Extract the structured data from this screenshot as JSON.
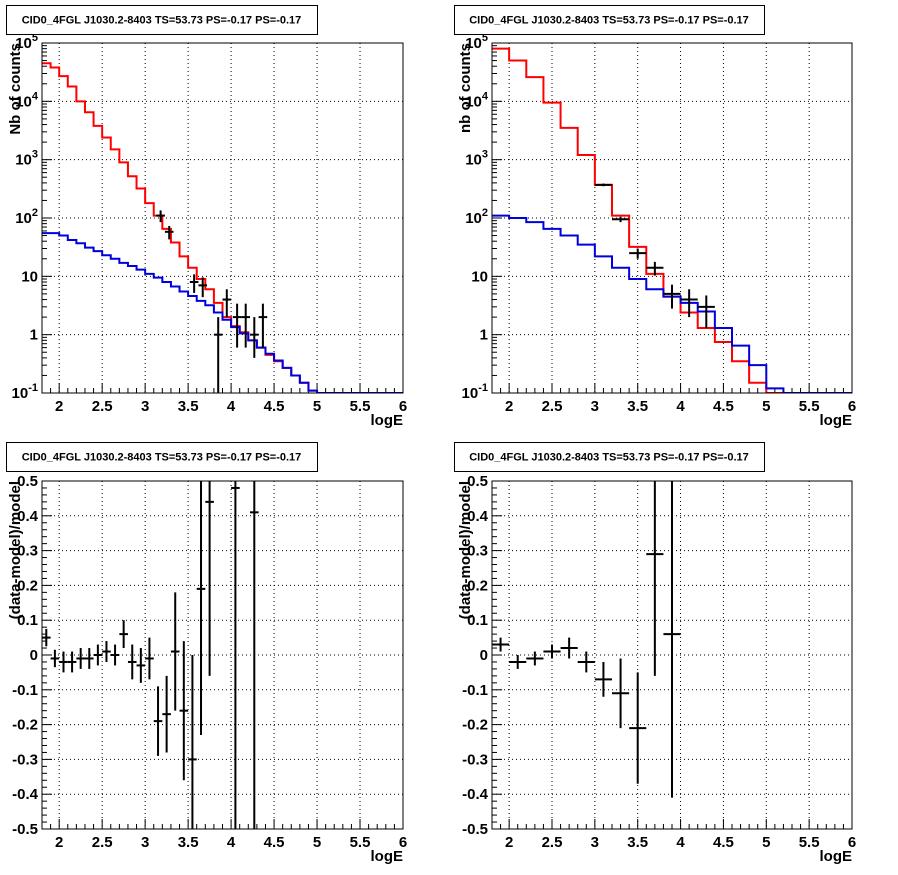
{
  "chart_data": [
    {
      "type": "line",
      "title": "CID0_4FGL J1030.2-8403 TS=53.73 PS=-0.17 PS=-0.17",
      "xlabel": "logE",
      "ylabel": "Nb of counts",
      "xlim": [
        1.8,
        6.0
      ],
      "ylim": [
        0.1,
        100000
      ],
      "yscale": "log",
      "grid": true,
      "xticks": [
        "2",
        "2.5",
        "3",
        "3.5",
        "4",
        "4.5",
        "5",
        "5.5",
        "6"
      ],
      "yticks": [
        "10^-1",
        "1",
        "10",
        "10^2",
        "10^3",
        "10^4",
        "10^5"
      ],
      "series": [
        {
          "style": "step",
          "color": "#ff0000",
          "edges": [
            1.8,
            1.9,
            2.0,
            2.1,
            2.2,
            2.3,
            2.4,
            2.5,
            2.6,
            2.7,
            2.8,
            2.9,
            3.0,
            3.1,
            3.2,
            3.3,
            3.4,
            3.5,
            3.6,
            3.7,
            3.8,
            3.9,
            4.0,
            4.1,
            4.2,
            4.3,
            4.4,
            4.5,
            4.6,
            4.7,
            4.8,
            4.9,
            5.0,
            5.1,
            5.2,
            5.3,
            5.4,
            5.5,
            5.6,
            5.7,
            5.8,
            5.9,
            6.0
          ],
          "values": [
            45000,
            38000,
            27000,
            18000,
            10000,
            6500,
            3800,
            2400,
            1500,
            900,
            520,
            320,
            180,
            110,
            65,
            38,
            22,
            14,
            9,
            6,
            3.5,
            2.0,
            1.4,
            1.1,
            0.8,
            0.6,
            0.45,
            0.35,
            0.27,
            0.2,
            0.15,
            0.11,
            0.1,
            0.1,
            0.1,
            0.1,
            0.1,
            0.1,
            0.1,
            0.1,
            0.1,
            0.1
          ]
        },
        {
          "style": "step",
          "color": "#0000dd",
          "edges": [
            1.8,
            1.9,
            2.0,
            2.1,
            2.2,
            2.3,
            2.4,
            2.5,
            2.6,
            2.7,
            2.8,
            2.9,
            3.0,
            3.1,
            3.2,
            3.3,
            3.4,
            3.5,
            3.6,
            3.7,
            3.8,
            3.9,
            4.0,
            4.1,
            4.2,
            4.3,
            4.4,
            4.5,
            4.6,
            4.7,
            4.8,
            4.9,
            5.0,
            5.1,
            5.2,
            5.3,
            5.4,
            5.5,
            5.6,
            5.7,
            5.8,
            5.9,
            6.0
          ],
          "values": [
            55,
            55,
            50,
            42,
            37,
            31,
            27,
            23,
            20,
            17,
            15,
            13,
            11,
            9.5,
            8,
            6.7,
            5.5,
            4.6,
            3.8,
            3.2,
            2.4,
            1.8,
            1.35,
            1.05,
            0.8,
            0.6,
            0.47,
            0.36,
            0.27,
            0.2,
            0.15,
            0.11,
            0.1,
            0.1,
            0.1,
            0.1,
            0.1,
            0.1,
            0.1,
            0.1,
            0.1,
            0.1
          ]
        },
        {
          "style": "errorbar",
          "color": "#000000",
          "points": [
            {
              "x": 3.18,
              "y": 110,
              "xerr": 0.05,
              "yerr_lo": 25,
              "yerr_hi": 25
            },
            {
              "x": 3.28,
              "y": 58,
              "xerr": 0.05,
              "yerr_lo": 15,
              "yerr_hi": 15
            },
            {
              "x": 3.57,
              "y": 8,
              "xerr": 0.05,
              "yerr_lo": 2.8,
              "yerr_hi": 2.8
            },
            {
              "x": 3.67,
              "y": 7,
              "xerr": 0.05,
              "yerr_lo": 2.6,
              "yerr_hi": 2.6
            },
            {
              "x": 3.85,
              "y": 1,
              "xerr": 0.05,
              "yerr_lo": 0.9,
              "yerr_hi": 1.0
            },
            {
              "x": 3.95,
              "y": 4,
              "xerr": 0.05,
              "yerr_lo": 2.0,
              "yerr_hi": 2.0
            },
            {
              "x": 4.07,
              "y": 2,
              "xerr": 0.05,
              "yerr_lo": 1.4,
              "yerr_hi": 1.4
            },
            {
              "x": 4.17,
              "y": 2,
              "xerr": 0.05,
              "yerr_lo": 1.4,
              "yerr_hi": 1.4
            },
            {
              "x": 4.27,
              "y": 1,
              "xerr": 0.05,
              "yerr_lo": 0.6,
              "yerr_hi": 1.0
            },
            {
              "x": 4.37,
              "y": 2,
              "xerr": 0.05,
              "yerr_lo": 1.4,
              "yerr_hi": 1.4
            }
          ]
        }
      ]
    },
    {
      "type": "line",
      "title": "CID0_4FGL J1030.2-8403 TS=53.73 PS=-0.17 PS=-0.17",
      "xlabel": "logE",
      "ylabel": "nb of counts",
      "xlim": [
        1.8,
        6.0
      ],
      "ylim": [
        0.1,
        100000
      ],
      "yscale": "log",
      "grid": true,
      "xticks": [
        "2",
        "2.5",
        "3",
        "3.5",
        "4",
        "4.5",
        "5",
        "5.5",
        "6"
      ],
      "yticks": [
        "10^-1",
        "1",
        "10",
        "10^2",
        "10^3",
        "10^4",
        "10^5"
      ],
      "series": [
        {
          "style": "step",
          "color": "#ff0000",
          "edges": [
            1.8,
            2.0,
            2.2,
            2.4,
            2.6,
            2.8,
            3.0,
            3.2,
            3.4,
            3.6,
            3.8,
            4.0,
            4.2,
            4.4,
            4.6,
            4.8,
            5.0,
            5.2,
            5.4,
            5.6,
            5.8,
            6.0
          ],
          "values": [
            80000,
            50000,
            26000,
            9500,
            3500,
            1200,
            370,
            110,
            32,
            11,
            4.5,
            2.4,
            1.3,
            0.75,
            0.35,
            0.15,
            0.1,
            0.1,
            0.1,
            0.1,
            0.1
          ]
        },
        {
          "style": "step",
          "color": "#0000dd",
          "edges": [
            1.8,
            2.0,
            2.2,
            2.4,
            2.6,
            2.8,
            3.0,
            3.2,
            3.4,
            3.6,
            3.8,
            4.0,
            4.2,
            4.4,
            4.6,
            4.8,
            5.0,
            5.2,
            5.4,
            5.6,
            5.8,
            6.0
          ],
          "values": [
            110,
            100,
            85,
            65,
            50,
            35,
            22,
            14,
            9,
            6,
            4.5,
            3.5,
            2.5,
            1.3,
            0.65,
            0.3,
            0.12,
            0.1,
            0.1,
            0.1,
            0.1
          ]
        },
        {
          "style": "errorbar",
          "color": "#000000",
          "points": [
            {
              "x": 3.1,
              "y": 370,
              "xerr": 0.1,
              "yerr_lo": 20,
              "yerr_hi": 20
            },
            {
              "x": 3.3,
              "y": 95,
              "xerr": 0.1,
              "yerr_lo": 10,
              "yerr_hi": 10
            },
            {
              "x": 3.5,
              "y": 25,
              "xerr": 0.1,
              "yerr_lo": 5,
              "yerr_hi": 5
            },
            {
              "x": 3.7,
              "y": 14,
              "xerr": 0.1,
              "yerr_lo": 3.7,
              "yerr_hi": 3.7
            },
            {
              "x": 3.9,
              "y": 5,
              "xerr": 0.1,
              "yerr_lo": 2.2,
              "yerr_hi": 2.2
            },
            {
              "x": 4.1,
              "y": 4,
              "xerr": 0.1,
              "yerr_lo": 2,
              "yerr_hi": 2
            },
            {
              "x": 4.3,
              "y": 3,
              "xerr": 0.1,
              "yerr_lo": 1.7,
              "yerr_hi": 1.7
            }
          ]
        }
      ]
    },
    {
      "type": "scatter",
      "title": "CID0_4FGL J1030.2-8403 TS=53.73 PS=-0.17 PS=-0.17",
      "xlabel": "logE",
      "ylabel": "(data-model)/model",
      "xlim": [
        1.8,
        6.0
      ],
      "ylim": [
        -0.5,
        0.5
      ],
      "grid": true,
      "xticks": [
        "2",
        "2.5",
        "3",
        "3.5",
        "4",
        "4.5",
        "5",
        "5.5",
        "6"
      ],
      "yticks": [
        "-0.5",
        "-0.4",
        "-0.3",
        "-0.2",
        "-0.1",
        "0",
        "0.1",
        "0.2",
        "0.3",
        "0.4",
        "0.5"
      ],
      "series": [
        {
          "style": "errorbar",
          "color": "#000000",
          "points": [
            {
              "x": 1.85,
              "y": 0.05,
              "xerr": 0.05,
              "yerr": 0.025
            },
            {
              "x": 1.95,
              "y": -0.01,
              "xerr": 0.05,
              "yerr": 0.025
            },
            {
              "x": 2.05,
              "y": -0.02,
              "xerr": 0.05,
              "yerr": 0.03
            },
            {
              "x": 2.15,
              "y": -0.02,
              "xerr": 0.05,
              "yerr": 0.03
            },
            {
              "x": 2.25,
              "y": -0.01,
              "xerr": 0.05,
              "yerr": 0.03
            },
            {
              "x": 2.35,
              "y": -0.01,
              "xerr": 0.05,
              "yerr": 0.03
            },
            {
              "x": 2.45,
              "y": 0.0,
              "xerr": 0.05,
              "yerr": 0.03
            },
            {
              "x": 2.55,
              "y": 0.01,
              "xerr": 0.05,
              "yerr": 0.03
            },
            {
              "x": 2.65,
              "y": 0.0,
              "xerr": 0.05,
              "yerr": 0.03
            },
            {
              "x": 2.75,
              "y": 0.06,
              "xerr": 0.05,
              "yerr": 0.04
            },
            {
              "x": 2.85,
              "y": -0.02,
              "xerr": 0.05,
              "yerr": 0.05
            },
            {
              "x": 2.95,
              "y": -0.03,
              "xerr": 0.05,
              "yerr": 0.05
            },
            {
              "x": 3.05,
              "y": -0.01,
              "xerr": 0.05,
              "yerr": 0.06
            },
            {
              "x": 3.15,
              "y": -0.19,
              "xerr": 0.05,
              "yerr": 0.1
            },
            {
              "x": 3.25,
              "y": -0.17,
              "xerr": 0.05,
              "yerr": 0.11
            },
            {
              "x": 3.35,
              "y": 0.01,
              "xerr": 0.05,
              "yerr": 0.17
            },
            {
              "x": 3.45,
              "y": -0.16,
              "xerr": 0.05,
              "yerr": 0.2
            },
            {
              "x": 3.55,
              "y": -0.3,
              "xerr": 0.05,
              "yerr": 0.3
            },
            {
              "x": 3.65,
              "y": 0.19,
              "xerr": 0.05,
              "yerr": 0.42
            },
            {
              "x": 3.75,
              "y": 0.44,
              "xerr": 0.05,
              "yerr": 0.5
            },
            {
              "x": 4.05,
              "y": 0.48,
              "xerr": 0.05,
              "yerr": 1.0
            },
            {
              "x": 4.27,
              "y": 0.41,
              "xerr": 0.05,
              "yerr": 1.0
            }
          ]
        }
      ]
    },
    {
      "type": "scatter",
      "title": "CID0_4FGL J1030.2-8403 TS=53.73 PS=-0.17 PS=-0.17",
      "xlabel": "logE",
      "ylabel": "(data-model)/model",
      "xlim": [
        1.8,
        6.0
      ],
      "ylim": [
        -0.5,
        0.5
      ],
      "grid": true,
      "xticks": [
        "2",
        "2.5",
        "3",
        "3.5",
        "4",
        "4.5",
        "5",
        "5.5",
        "6"
      ],
      "yticks": [
        "-0.5",
        "-0.4",
        "-0.3",
        "-0.2",
        "-0.1",
        "0",
        "0.1",
        "0.2",
        "0.3",
        "0.4",
        "0.5"
      ],
      "series": [
        {
          "style": "errorbar",
          "color": "#000000",
          "points": [
            {
              "x": 1.9,
              "y": 0.03,
              "xerr": 0.1,
              "yerr": 0.02
            },
            {
              "x": 2.1,
              "y": -0.02,
              "xerr": 0.1,
              "yerr": 0.02
            },
            {
              "x": 2.3,
              "y": -0.01,
              "xerr": 0.1,
              "yerr": 0.02
            },
            {
              "x": 2.5,
              "y": 0.01,
              "xerr": 0.1,
              "yerr": 0.02
            },
            {
              "x": 2.7,
              "y": 0.02,
              "xerr": 0.1,
              "yerr": 0.03
            },
            {
              "x": 2.9,
              "y": -0.02,
              "xerr": 0.1,
              "yerr": 0.03
            },
            {
              "x": 3.1,
              "y": -0.07,
              "xerr": 0.1,
              "yerr": 0.05
            },
            {
              "x": 3.3,
              "y": -0.11,
              "xerr": 0.1,
              "yerr": 0.1
            },
            {
              "x": 3.5,
              "y": -0.21,
              "xerr": 0.1,
              "yerr": 0.16
            },
            {
              "x": 3.7,
              "y": 0.29,
              "xerr": 0.1,
              "yerr": 0.35
            },
            {
              "x": 3.9,
              "y": 0.06,
              "xerr": 0.1,
              "yerr": 0.47
            }
          ]
        }
      ]
    }
  ]
}
